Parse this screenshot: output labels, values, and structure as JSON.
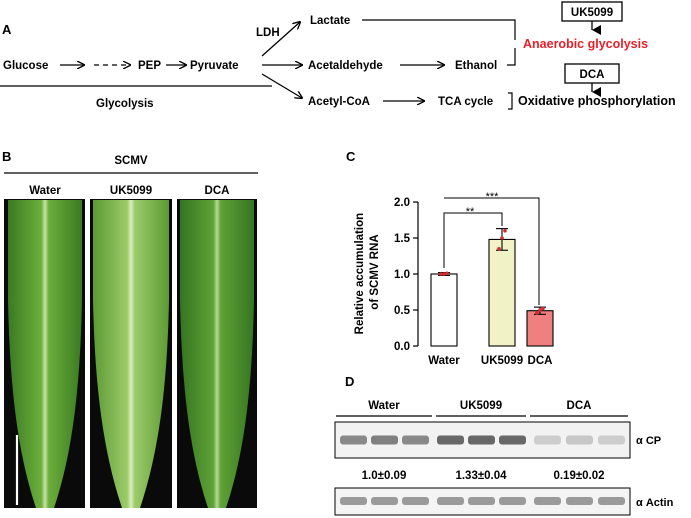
{
  "panel_a": {
    "label": "A",
    "glucose": "Glucose",
    "pep": "PEP",
    "pyruvate": "Pyruvate",
    "ldh": "LDH",
    "lactate": "Lactate",
    "acetaldehyde": "Acetaldehyde",
    "ethanol": "Ethanol",
    "acetyl_coa": "Acetyl-CoA",
    "tca_cycle": "TCA cycle",
    "glycolysis": "Glycolysis",
    "anaerobic": "Anaerobic glycolysis",
    "oxphos": "Oxidative phosphorylation",
    "inhibitor_1": "UK5099",
    "inhibitor_2": "DCA",
    "anaerobic_color": "#e8202a"
  },
  "panel_b": {
    "label": "B",
    "header": "SCMV",
    "leaves": [
      "Water",
      "UK5099",
      "DCA"
    ]
  },
  "panel_c": {
    "label": "C",
    "significance": [
      "**",
      "***"
    ]
  },
  "chart_data": {
    "type": "bar",
    "categories": [
      "Water",
      "UK5099",
      "DCA"
    ],
    "values": [
      1.0,
      1.48,
      0.49
    ],
    "errors": [
      0.02,
      0.15,
      0.05
    ],
    "points": [
      [
        1.0,
        1.0,
        1.01
      ],
      [
        1.35,
        1.5,
        1.6
      ],
      [
        0.46,
        0.5,
        0.52
      ]
    ],
    "colors": [
      "#ffffff",
      "#f1f3c7",
      "#f08080"
    ],
    "ylabel": "Relative accumulation of SCMV RNA",
    "ylim": [
      0,
      2.0
    ],
    "yticks": [
      "0.0",
      "0.5",
      "1.0",
      "1.5",
      "2.0"
    ],
    "point_color": "#d42a2a"
  },
  "panel_d": {
    "label": "D",
    "groups": [
      "Water",
      "UK5099",
      "DCA"
    ],
    "quant": [
      "1.0±0.09",
      "1.33±0.04",
      "0.19±0.02"
    ],
    "band_cp": "α CP",
    "band_actin": "α Actin",
    "cp_intensity": [
      0.55,
      0.6,
      0.55,
      0.75,
      0.75,
      0.75,
      0.15,
      0.18,
      0.15
    ],
    "actin_intensity": [
      0.45,
      0.45,
      0.45,
      0.45,
      0.45,
      0.45,
      0.45,
      0.45,
      0.45
    ]
  }
}
